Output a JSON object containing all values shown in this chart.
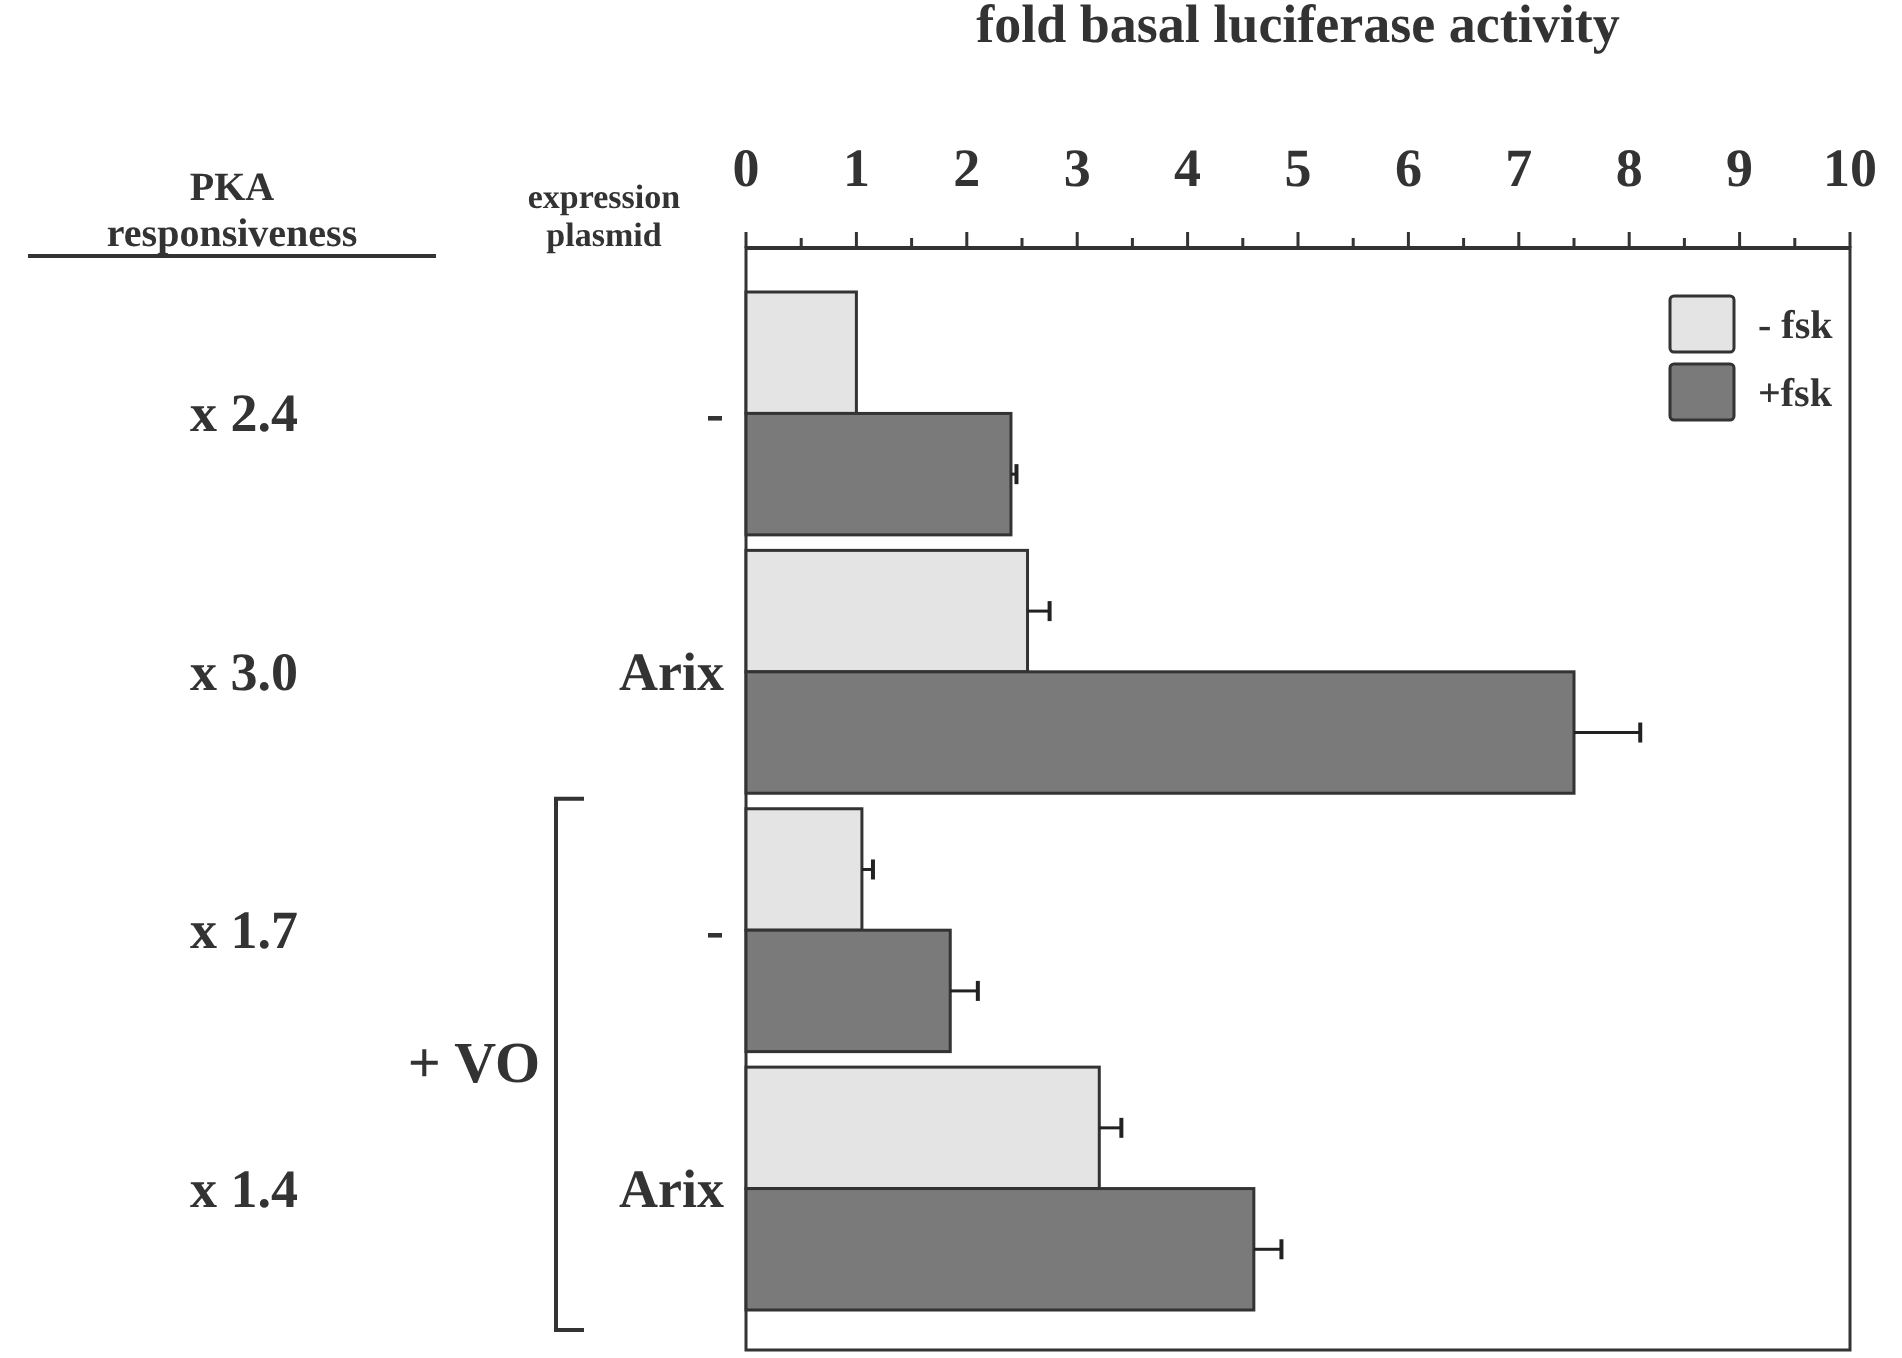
{
  "chart_data": {
    "type": "bar",
    "orientation": "horizontal",
    "xlabel": "fold basal luciferase activity",
    "ylabel": "expression plasmid",
    "categories": [
      "-",
      "Arix",
      "-",
      "Arix"
    ],
    "y2_categories": [
      "x 2.4",
      "x 3.0",
      "x 1.7",
      "x 1.4"
    ],
    "series": [
      {
        "name": "- fsk",
        "color": "#e4e4e4",
        "values": [
          1.0,
          2.55,
          1.05,
          3.2
        ],
        "errors": [
          null,
          0.2,
          0.1,
          0.2
        ]
      },
      {
        "name": "+fsk",
        "color": "#7a7a7a",
        "values": [
          2.4,
          7.5,
          1.85,
          4.6
        ],
        "errors": [
          0.05,
          0.6,
          0.25,
          0.25
        ]
      }
    ],
    "xlim": [
      0,
      10
    ],
    "xticks": [
      0,
      {
        "value": 0.5,
        "label": null
      },
      1,
      {
        "value": 1.5,
        "label": null
      },
      2,
      {
        "value": 2.5,
        "label": null
      },
      3,
      {
        "value": 3.5,
        "label": null
      },
      4,
      {
        "value": 4.5,
        "label": null
      },
      5,
      {
        "value": 5.5,
        "label": null
      },
      6,
      {
        "value": 6.5,
        "label": null
      },
      7,
      {
        "value": 7.5,
        "label": null
      },
      8,
      {
        "value": 8.5,
        "label": null
      },
      9,
      {
        "value": 9.5,
        "label": null
      },
      10
    ],
    "annotations": [
      "PKA responsiveness",
      "+ VO"
    ],
    "legend": "top right"
  }
}
